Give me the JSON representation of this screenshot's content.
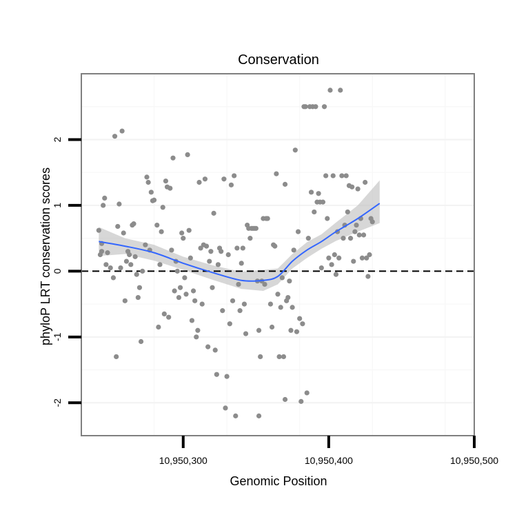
{
  "chart_data": {
    "type": "scatter",
    "title": "Conservation",
    "xlabel": "Genomic Position",
    "ylabel": "phyloP LRT conservation scores",
    "xlim": [
      10950230,
      10950500
    ],
    "ylim": [
      -2.5,
      3.0
    ],
    "x_ticks": [
      10950300,
      10950400,
      10950500
    ],
    "x_tick_labels": [
      "10,950,300",
      "10,950,400",
      "10,950,500"
    ],
    "y_ticks": [
      -2,
      -1,
      0,
      1,
      2
    ],
    "y_tick_labels": [
      "-2",
      "-1",
      "0",
      "1",
      "2"
    ],
    "grid": true,
    "legend": "none",
    "reference_line": {
      "y": 0,
      "style": "dashed",
      "color": "#000000"
    },
    "colors": {
      "points": "#8c8c8c",
      "smooth": "#3366ff",
      "band": "#bdbdbd",
      "border": "#7f7f7f"
    },
    "points": [
      [
        10950242,
        0.62
      ],
      [
        10950243,
        0.25
      ],
      [
        10950244,
        0.42
      ],
      [
        10950245,
        1.0
      ],
      [
        10950246,
        1.11
      ],
      [
        10950244,
        0.3
      ],
      [
        10950247,
        0.1
      ],
      [
        10950248,
        0.28
      ],
      [
        10950250,
        0.05
      ],
      [
        10950252,
        -0.1
      ],
      [
        10950253,
        2.05
      ],
      [
        10950254,
        -1.3
      ],
      [
        10950255,
        0.68
      ],
      [
        10950256,
        1.02
      ],
      [
        10950257,
        0.05
      ],
      [
        10950258,
        2.13
      ],
      [
        10950259,
        0.58
      ],
      [
        10950260,
        -0.45
      ],
      [
        10950261,
        0.15
      ],
      [
        10950262,
        0.3
      ],
      [
        10950263,
        0.25
      ],
      [
        10950264,
        0.1
      ],
      [
        10950265,
        0.7
      ],
      [
        10950266,
        0.72
      ],
      [
        10950267,
        0.22
      ],
      [
        10950268,
        -0.05
      ],
      [
        10950269,
        -0.4
      ],
      [
        10950270,
        -0.25
      ],
      [
        10950271,
        -1.07
      ],
      [
        10950272,
        0.0
      ],
      [
        10950274,
        0.4
      ],
      [
        10950275,
        1.43
      ],
      [
        10950276,
        1.35
      ],
      [
        10950277,
        0.32
      ],
      [
        10950278,
        1.2
      ],
      [
        10950279,
        1.07
      ],
      [
        10950280,
        1.08
      ],
      [
        10950282,
        0.7
      ],
      [
        10950283,
        -0.85
      ],
      [
        10950284,
        0.1
      ],
      [
        10950285,
        0.6
      ],
      [
        10950286,
        0.97
      ],
      [
        10950287,
        -0.65
      ],
      [
        10950288,
        1.37
      ],
      [
        10950289,
        1.28
      ],
      [
        10950290,
        -0.7
      ],
      [
        10950291,
        1.26
      ],
      [
        10950292,
        0.32
      ],
      [
        10950293,
        1.72
      ],
      [
        10950294,
        -0.3
      ],
      [
        10950295,
        0.15
      ],
      [
        10950296,
        0.0
      ],
      [
        10950297,
        -0.4
      ],
      [
        10950298,
        -0.25
      ],
      [
        10950299,
        0.58
      ],
      [
        10950300,
        0.5
      ],
      [
        10950301,
        -0.1
      ],
      [
        10950302,
        -0.35
      ],
      [
        10950303,
        1.77
      ],
      [
        10950304,
        0.62
      ],
      [
        10950305,
        0.2
      ],
      [
        10950306,
        -0.75
      ],
      [
        10950307,
        -0.3
      ],
      [
        10950308,
        -0.45
      ],
      [
        10950309,
        -1.0
      ],
      [
        10950310,
        -0.9
      ],
      [
        10950311,
        1.35
      ],
      [
        10950312,
        0.35
      ],
      [
        10950313,
        -0.5
      ],
      [
        10950314,
        0.4
      ],
      [
        10950315,
        1.4
      ],
      [
        10950316,
        0.38
      ],
      [
        10950317,
        -1.15
      ],
      [
        10950318,
        0.15
      ],
      [
        10950319,
        0.3
      ],
      [
        10950320,
        -0.25
      ],
      [
        10950321,
        0.88
      ],
      [
        10950322,
        -1.2
      ],
      [
        10950323,
        -1.57
      ],
      [
        10950324,
        0.1
      ],
      [
        10950325,
        0.35
      ],
      [
        10950326,
        0.3
      ],
      [
        10950327,
        -0.6
      ],
      [
        10950328,
        1.4
      ],
      [
        10950329,
        -2.08
      ],
      [
        10950330,
        -1.6
      ],
      [
        10950331,
        0.25
      ],
      [
        10950332,
        -0.8
      ],
      [
        10950333,
        1.31
      ],
      [
        10950334,
        -0.45
      ],
      [
        10950335,
        1.45
      ],
      [
        10950336,
        -2.2
      ],
      [
        10950337,
        0.35
      ],
      [
        10950338,
        -0.2
      ],
      [
        10950339,
        -0.6
      ],
      [
        10950340,
        0.12
      ],
      [
        10950341,
        0.35
      ],
      [
        10950342,
        -0.5
      ],
      [
        10950343,
        -0.95
      ],
      [
        10950344,
        0.7
      ],
      [
        10950345,
        0.65
      ],
      [
        10950346,
        0.5
      ],
      [
        10950347,
        0.65
      ],
      [
        10950348,
        0.65
      ],
      [
        10950349,
        0.65
      ],
      [
        10950350,
        0.65
      ],
      [
        10950351,
        -0.15
      ],
      [
        10950352,
        -2.2
      ],
      [
        10950352,
        -0.9
      ],
      [
        10950353,
        -1.3
      ],
      [
        10950354,
        -0.15
      ],
      [
        10950355,
        0.8
      ],
      [
        10950356,
        -0.2
      ],
      [
        10950357,
        0.8
      ],
      [
        10950358,
        0.8
      ],
      [
        10950360,
        -0.5
      ],
      [
        10950361,
        -0.85
      ],
      [
        10950362,
        0.4
      ],
      [
        10950363,
        0.38
      ],
      [
        10950364,
        1.48
      ],
      [
        10950365,
        -0.35
      ],
      [
        10950366,
        -1.3
      ],
      [
        10950367,
        -0.55
      ],
      [
        10950368,
        -0.1
      ],
      [
        10950369,
        -1.3
      ],
      [
        10950370,
        -1.95
      ],
      [
        10950370,
        1.32
      ],
      [
        10950371,
        -0.45
      ],
      [
        10950372,
        -0.4
      ],
      [
        10950373,
        -0.15
      ],
      [
        10950374,
        -0.9
      ],
      [
        10950375,
        -0.55
      ],
      [
        10950376,
        0.32
      ],
      [
        10950377,
        1.84
      ],
      [
        10950378,
        -0.92
      ],
      [
        10950379,
        0.6
      ],
      [
        10950380,
        -0.72
      ],
      [
        10950381,
        -1.98
      ],
      [
        10950382,
        -0.8
      ],
      [
        10950383,
        2.5
      ],
      [
        10950384,
        2.5
      ],
      [
        10950385,
        -1.85
      ],
      [
        10950386,
        0.5
      ],
      [
        10950387,
        2.5
      ],
      [
        10950388,
        1.2
      ],
      [
        10950389,
        2.5
      ],
      [
        10950390,
        0.9
      ],
      [
        10950391,
        2.5
      ],
      [
        10950392,
        1.05
      ],
      [
        10950393,
        1.18
      ],
      [
        10950394,
        1.05
      ],
      [
        10950395,
        0.05
      ],
      [
        10950396,
        1.05
      ],
      [
        10950397,
        2.5
      ],
      [
        10950398,
        1.45
      ],
      [
        10950399,
        0.8
      ],
      [
        10950400,
        0.2
      ],
      [
        10950401,
        2.75
      ],
      [
        10950402,
        0.1
      ],
      [
        10950403,
        1.45
      ],
      [
        10950404,
        0.25
      ],
      [
        10950405,
        -0.05
      ],
      [
        10950406,
        0.6
      ],
      [
        10950407,
        0.2
      ],
      [
        10950408,
        2.75
      ],
      [
        10950409,
        1.45
      ],
      [
        10950410,
        0.5
      ],
      [
        10950411,
        0.7
      ],
      [
        10950412,
        1.45
      ],
      [
        10950413,
        0.9
      ],
      [
        10950414,
        1.3
      ],
      [
        10950415,
        0.5
      ],
      [
        10950416,
        1.28
      ],
      [
        10950417,
        0.15
      ],
      [
        10950418,
        0.6
      ],
      [
        10950419,
        0.7
      ],
      [
        10950420,
        1.25
      ],
      [
        10950421,
        0.55
      ],
      [
        10950422,
        0.8
      ],
      [
        10950423,
        0.2
      ],
      [
        10950424,
        0.55
      ],
      [
        10950425,
        1.35
      ],
      [
        10950426,
        0.2
      ],
      [
        10950427,
        -0.08
      ],
      [
        10950428,
        0.25
      ],
      [
        10950429,
        0.8
      ],
      [
        10950430,
        0.75
      ]
    ],
    "smooth_line": {
      "x": [
        10950242,
        10950260,
        10950280,
        10950300,
        10950320,
        10950340,
        10950355,
        10950365,
        10950375,
        10950385,
        10950395,
        10950405,
        10950420,
        10950435
      ],
      "y": [
        0.45,
        0.38,
        0.28,
        0.12,
        -0.02,
        -0.14,
        -0.14,
        -0.08,
        0.15,
        0.32,
        0.45,
        0.6,
        0.8,
        1.03
      ]
    },
    "confidence_band": {
      "x": [
        10950242,
        10950260,
        10950280,
        10950300,
        10950320,
        10950340,
        10950355,
        10950365,
        10950375,
        10950385,
        10950395,
        10950405,
        10950420,
        10950435
      ],
      "lower": [
        0.23,
        0.26,
        0.16,
        0.02,
        -0.13,
        -0.27,
        -0.3,
        -0.2,
        0.04,
        0.2,
        0.34,
        0.46,
        0.6,
        0.73
      ],
      "upper": [
        0.67,
        0.5,
        0.4,
        0.22,
        0.09,
        -0.01,
        0.02,
        0.04,
        0.26,
        0.44,
        0.56,
        0.74,
        1.0,
        1.38
      ]
    }
  }
}
